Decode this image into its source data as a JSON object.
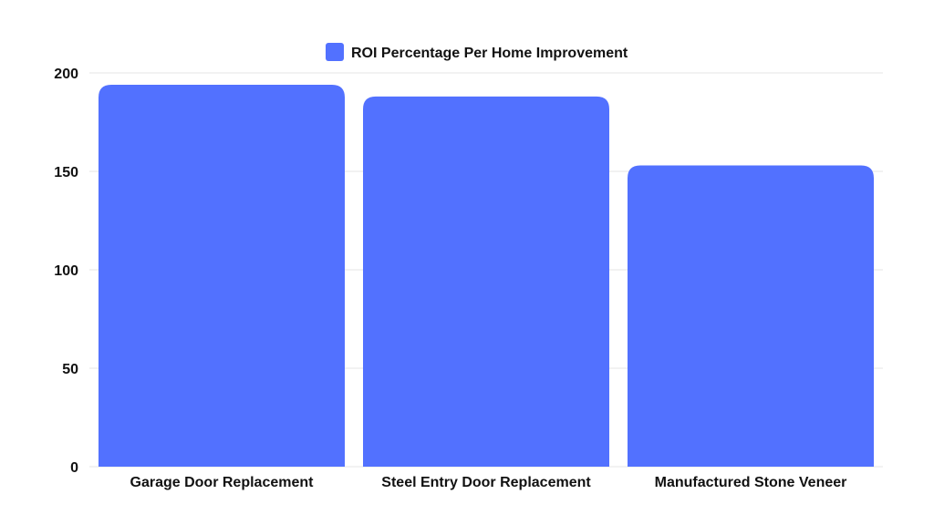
{
  "chart_data": {
    "type": "bar",
    "categories": [
      "Garage Door Replacement",
      "Steel Entry Door Replacement",
      "Manufactured Stone Veneer"
    ],
    "series": [
      {
        "name": "ROI Percentage Per Home Improvement",
        "values": [
          194,
          188,
          153
        ]
      }
    ],
    "yticks": [
      "0",
      "50",
      "100",
      "150",
      "200"
    ],
    "ylim": [
      0,
      200
    ],
    "grid": true,
    "legend_position": "top-center",
    "bar_color": "#5271ff"
  }
}
